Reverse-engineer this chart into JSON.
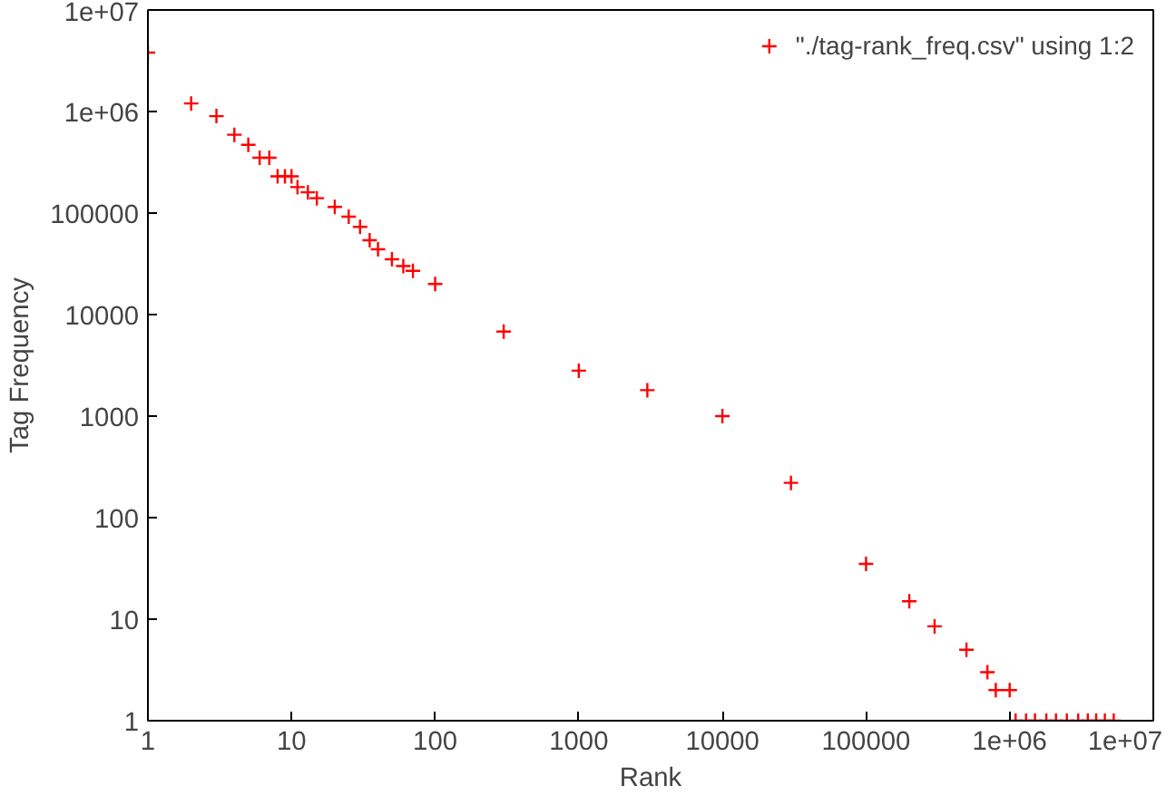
{
  "chart_data": {
    "type": "scatter",
    "xlabel": "Rank",
    "ylabel": "Tag Frequency",
    "log": "xy",
    "grid": false,
    "legend": "top right",
    "marker": "cross",
    "xlim": [
      1,
      10000000
    ],
    "ylim": [
      1,
      10000000
    ],
    "xticks": [
      1,
      10,
      100,
      1000,
      10000,
      100000,
      {
        "value": 1000000,
        "label": "1e+06"
      },
      {
        "value": 10000000,
        "label": "1e+07"
      }
    ],
    "yticks": [
      1,
      10,
      100,
      1000,
      10000,
      100000,
      {
        "value": 1000000,
        "label": "1e+06"
      },
      {
        "value": 10000000,
        "label": "1e+07"
      }
    ],
    "series": [
      {
        "name": "\"./tag-rank_freq.csv\" using 1:2",
        "color": "#ff0000",
        "x": [
          1,
          2,
          3,
          4,
          5,
          6,
          7,
          8,
          9,
          10,
          11,
          13,
          15,
          20,
          25,
          30,
          35,
          40,
          50,
          60,
          70,
          100,
          300,
          1000,
          3000,
          10000,
          30000,
          100000,
          200000,
          300000,
          500000,
          700000,
          800000,
          1000000,
          1100000,
          1300000,
          1500000,
          1800000,
          2100000,
          2500000,
          3000000,
          3500000,
          4000000,
          4600000,
          5300000
        ],
        "values": [
          3800000,
          1200000,
          900000,
          590000,
          470000,
          350000,
          350000,
          230000,
          230000,
          230000,
          180000,
          160000,
          140000,
          115000,
          92000,
          73000,
          54000,
          44000,
          35000,
          30000,
          27000,
          20000,
          6800,
          2800,
          1800,
          1000,
          220,
          35,
          15,
          8.5,
          5,
          3,
          2,
          2,
          1,
          1,
          1,
          1,
          1,
          1,
          1,
          1,
          1,
          1,
          1
        ]
      }
    ]
  }
}
